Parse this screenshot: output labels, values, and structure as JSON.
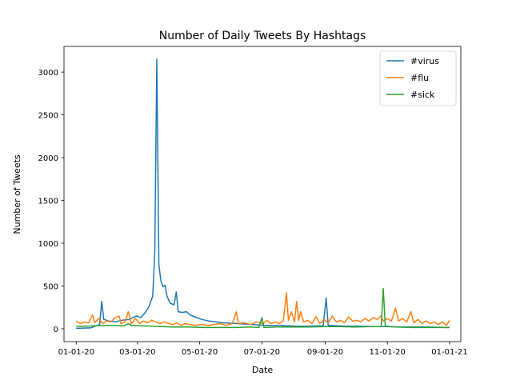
{
  "chart_data": {
    "type": "line",
    "title": "Number of Daily Tweets By Hashtags",
    "xlabel": "Date",
    "ylabel": "Number of Tweets",
    "x_range": [
      "2020-01-01",
      "2021-01-01"
    ],
    "xlim": [
      "2019-12-20",
      "2021-01-12"
    ],
    "ylim": [
      -150,
      3300
    ],
    "x_ticks": [
      {
        "date": "2020-01-01",
        "label": "01-01-20"
      },
      {
        "date": "2020-03-01",
        "label": "03-01-20"
      },
      {
        "date": "2020-05-01",
        "label": "05-01-20"
      },
      {
        "date": "2020-07-01",
        "label": "07-01-20"
      },
      {
        "date": "2020-09-01",
        "label": "09-01-20"
      },
      {
        "date": "2020-11-01",
        "label": "11-01-20"
      },
      {
        "date": "2021-01-01",
        "label": "01-01-21"
      }
    ],
    "y_ticks": [
      0,
      500,
      1000,
      1500,
      2000,
      2500,
      3000
    ],
    "grid": false,
    "legend": "top-right",
    "series": [
      {
        "name": "#virus",
        "color": "#1f77b4",
        "points": [
          [
            "2020-01-01",
            5
          ],
          [
            "2020-01-08",
            8
          ],
          [
            "2020-01-15",
            10
          ],
          [
            "2020-01-20",
            30
          ],
          [
            "2020-01-24",
            50
          ],
          [
            "2020-01-26",
            320
          ],
          [
            "2020-01-28",
            110
          ],
          [
            "2020-02-02",
            90
          ],
          [
            "2020-02-08",
            80
          ],
          [
            "2020-02-15",
            100
          ],
          [
            "2020-02-22",
            110
          ],
          [
            "2020-02-29",
            150
          ],
          [
            "2020-03-04",
            130
          ],
          [
            "2020-03-08",
            180
          ],
          [
            "2020-03-12",
            250
          ],
          [
            "2020-03-16",
            380
          ],
          [
            "2020-03-18",
            900
          ],
          [
            "2020-03-20",
            3150
          ],
          [
            "2020-03-22",
            750
          ],
          [
            "2020-03-24",
            560
          ],
          [
            "2020-03-26",
            490
          ],
          [
            "2020-03-28",
            510
          ],
          [
            "2020-03-30",
            380
          ],
          [
            "2020-04-02",
            300
          ],
          [
            "2020-04-06",
            280
          ],
          [
            "2020-04-08",
            430
          ],
          [
            "2020-04-10",
            200
          ],
          [
            "2020-04-14",
            190
          ],
          [
            "2020-04-18",
            200
          ],
          [
            "2020-04-22",
            160
          ],
          [
            "2020-04-26",
            140
          ],
          [
            "2020-05-03",
            110
          ],
          [
            "2020-05-10",
            90
          ],
          [
            "2020-05-17",
            80
          ],
          [
            "2020-05-24",
            70
          ],
          [
            "2020-06-07",
            60
          ],
          [
            "2020-06-21",
            50
          ],
          [
            "2020-07-05",
            40
          ],
          [
            "2020-07-19",
            40
          ],
          [
            "2020-08-02",
            30
          ],
          [
            "2020-08-16",
            30
          ],
          [
            "2020-08-30",
            35
          ],
          [
            "2020-09-02",
            360
          ],
          [
            "2020-09-04",
            40
          ],
          [
            "2020-09-20",
            30
          ],
          [
            "2020-10-04",
            30
          ],
          [
            "2020-10-18",
            25
          ],
          [
            "2020-11-01",
            25
          ],
          [
            "2020-11-15",
            20
          ],
          [
            "2020-11-29",
            20
          ],
          [
            "2020-12-13",
            20
          ],
          [
            "2020-12-27",
            15
          ],
          [
            "2021-01-01",
            15
          ]
        ]
      },
      {
        "name": "#flu",
        "color": "#ff7f0e",
        "points": [
          [
            "2020-01-01",
            90
          ],
          [
            "2020-01-05",
            60
          ],
          [
            "2020-01-09",
            80
          ],
          [
            "2020-01-13",
            70
          ],
          [
            "2020-01-17",
            160
          ],
          [
            "2020-01-19",
            70
          ],
          [
            "2020-01-23",
            120
          ],
          [
            "2020-01-27",
            60
          ],
          [
            "2020-01-31",
            90
          ],
          [
            "2020-02-04",
            80
          ],
          [
            "2020-02-08",
            130
          ],
          [
            "2020-02-12",
            150
          ],
          [
            "2020-02-14",
            60
          ],
          [
            "2020-02-18",
            80
          ],
          [
            "2020-02-21",
            200
          ],
          [
            "2020-02-24",
            60
          ],
          [
            "2020-02-28",
            120
          ],
          [
            "2020-03-03",
            60
          ],
          [
            "2020-03-07",
            90
          ],
          [
            "2020-03-11",
            70
          ],
          [
            "2020-03-15",
            100
          ],
          [
            "2020-03-19",
            80
          ],
          [
            "2020-03-23",
            60
          ],
          [
            "2020-03-27",
            80
          ],
          [
            "2020-04-01",
            60
          ],
          [
            "2020-04-05",
            50
          ],
          [
            "2020-04-09",
            70
          ],
          [
            "2020-04-13",
            40
          ],
          [
            "2020-04-17",
            60
          ],
          [
            "2020-04-21",
            50
          ],
          [
            "2020-04-27",
            40
          ],
          [
            "2020-05-03",
            50
          ],
          [
            "2020-05-09",
            40
          ],
          [
            "2020-05-15",
            50
          ],
          [
            "2020-05-21",
            60
          ],
          [
            "2020-05-27",
            40
          ],
          [
            "2020-06-02",
            60
          ],
          [
            "2020-06-06",
            200
          ],
          [
            "2020-06-08",
            60
          ],
          [
            "2020-06-14",
            70
          ],
          [
            "2020-06-20",
            50
          ],
          [
            "2020-06-26",
            80
          ],
          [
            "2020-07-02",
            60
          ],
          [
            "2020-07-06",
            100
          ],
          [
            "2020-07-10",
            60
          ],
          [
            "2020-07-14",
            80
          ],
          [
            "2020-07-18",
            60
          ],
          [
            "2020-07-22",
            90
          ],
          [
            "2020-07-25",
            420
          ],
          [
            "2020-07-27",
            100
          ],
          [
            "2020-07-30",
            200
          ],
          [
            "2020-08-02",
            80
          ],
          [
            "2020-08-04",
            320
          ],
          [
            "2020-08-06",
            100
          ],
          [
            "2020-08-08",
            200
          ],
          [
            "2020-08-11",
            80
          ],
          [
            "2020-08-15",
            100
          ],
          [
            "2020-08-19",
            60
          ],
          [
            "2020-08-23",
            140
          ],
          [
            "2020-08-27",
            60
          ],
          [
            "2020-08-31",
            110
          ],
          [
            "2020-09-04",
            70
          ],
          [
            "2020-09-08",
            150
          ],
          [
            "2020-09-12",
            80
          ],
          [
            "2020-09-16",
            100
          ],
          [
            "2020-09-20",
            70
          ],
          [
            "2020-09-24",
            140
          ],
          [
            "2020-09-28",
            90
          ],
          [
            "2020-10-02",
            100
          ],
          [
            "2020-10-06",
            80
          ],
          [
            "2020-10-10",
            120
          ],
          [
            "2020-10-14",
            90
          ],
          [
            "2020-10-18",
            130
          ],
          [
            "2020-10-22",
            110
          ],
          [
            "2020-10-26",
            150
          ],
          [
            "2020-10-28",
            90
          ],
          [
            "2020-11-01",
            120
          ],
          [
            "2020-11-05",
            90
          ],
          [
            "2020-11-09",
            240
          ],
          [
            "2020-11-12",
            90
          ],
          [
            "2020-11-16",
            120
          ],
          [
            "2020-11-20",
            80
          ],
          [
            "2020-11-24",
            200
          ],
          [
            "2020-11-27",
            70
          ],
          [
            "2020-12-01",
            110
          ],
          [
            "2020-12-05",
            60
          ],
          [
            "2020-12-09",
            90
          ],
          [
            "2020-12-13",
            60
          ],
          [
            "2020-12-17",
            80
          ],
          [
            "2020-12-21",
            50
          ],
          [
            "2020-12-25",
            80
          ],
          [
            "2020-12-29",
            40
          ],
          [
            "2021-01-01",
            100
          ]
        ]
      },
      {
        "name": "#sick",
        "color": "#2ca02c",
        "points": [
          [
            "2020-01-01",
            30
          ],
          [
            "2020-01-10",
            30
          ],
          [
            "2020-01-20",
            35
          ],
          [
            "2020-01-28",
            40
          ],
          [
            "2020-02-07",
            40
          ],
          [
            "2020-02-17",
            35
          ],
          [
            "2020-02-21",
            60
          ],
          [
            "2020-02-24",
            40
          ],
          [
            "2020-03-05",
            35
          ],
          [
            "2020-03-15",
            30
          ],
          [
            "2020-03-25",
            25
          ],
          [
            "2020-04-05",
            20
          ],
          [
            "2020-04-20",
            20
          ],
          [
            "2020-05-05",
            15
          ],
          [
            "2020-05-20",
            15
          ],
          [
            "2020-06-05",
            15
          ],
          [
            "2020-06-20",
            20
          ],
          [
            "2020-06-28",
            15
          ],
          [
            "2020-07-01",
            130
          ],
          [
            "2020-07-03",
            15
          ],
          [
            "2020-07-15",
            20
          ],
          [
            "2020-08-01",
            20
          ],
          [
            "2020-08-15",
            20
          ],
          [
            "2020-09-01",
            25
          ],
          [
            "2020-09-15",
            25
          ],
          [
            "2020-10-01",
            20
          ],
          [
            "2020-10-15",
            25
          ],
          [
            "2020-10-26",
            25
          ],
          [
            "2020-10-28",
            470
          ],
          [
            "2020-10-30",
            30
          ],
          [
            "2020-11-10",
            20
          ],
          [
            "2020-11-25",
            15
          ],
          [
            "2020-12-10",
            15
          ],
          [
            "2020-12-25",
            15
          ],
          [
            "2021-01-01",
            15
          ]
        ]
      }
    ]
  }
}
